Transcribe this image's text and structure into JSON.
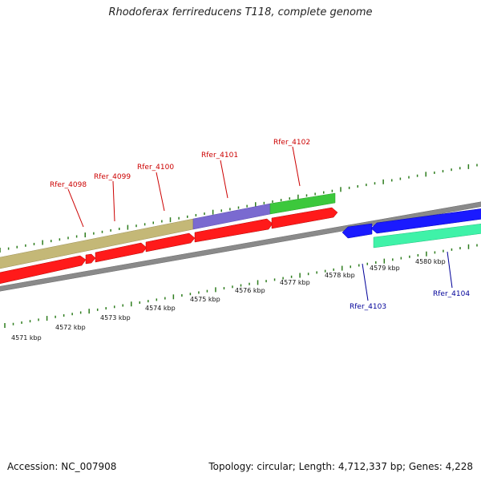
{
  "title": "Rhodoferax ferrireducens T118, complete genome",
  "footer": {
    "accession": "Accession: NC_007908",
    "summary": "Topology: circular; Length: 4,712,337 bp; Genes: 4,228"
  },
  "colors": {
    "forward_gene": "#ff0000",
    "reverse_gene": "#0000ff",
    "label_forward": "#cc0000",
    "label_reverse": "#000099",
    "tick": "#2e7d1e",
    "backbone": "#7a7a7a"
  },
  "scale_labels": [
    "4571 kbp",
    "4572 kbp",
    "4573 kbp",
    "4574 kbp",
    "4575 kbp",
    "4576 kbp",
    "4577 kbp",
    "4578 kbp",
    "4579 kbp",
    "4580 kbp"
  ],
  "gene_labels": [
    {
      "name": "Rfer_4098",
      "strand": "+"
    },
    {
      "name": "Rfer_4099",
      "strand": "+"
    },
    {
      "name": "Rfer_4100",
      "strand": "+"
    },
    {
      "name": "Rfer_4101",
      "strand": "+"
    },
    {
      "name": "Rfer_4102",
      "strand": "+"
    },
    {
      "name": "Rfer_4103",
      "strand": "-"
    },
    {
      "name": "Rfer_4104",
      "strand": "-"
    }
  ]
}
